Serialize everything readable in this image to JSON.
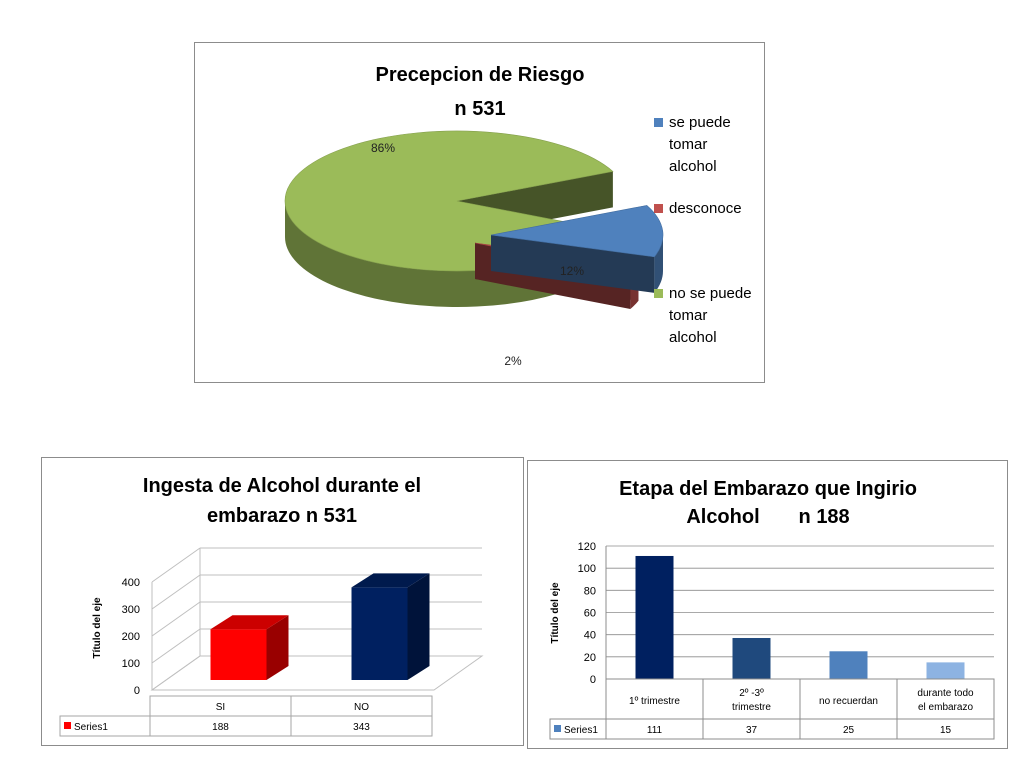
{
  "chart_data": [
    {
      "type": "pie",
      "title": "Precepcion de Riesgo",
      "subtitle": "n 531",
      "categories": [
        "se puede tomar alcohol",
        "desconoce",
        "no se puede tomar alcohol"
      ],
      "legend_lines": [
        [
          "se puede",
          "tomar",
          "alcohol"
        ],
        [
          "desconoce"
        ],
        [
          "no se puede",
          "tomar",
          "alcohol"
        ]
      ],
      "values": [
        12,
        2,
        86
      ],
      "labels": [
        "12%",
        "2%",
        "86%"
      ],
      "colors": [
        "#4f81bd",
        "#c0504d",
        "#9bbb59"
      ],
      "legend_position": "right"
    },
    {
      "type": "bar",
      "title_lines": [
        "Ingesta de Alcohol durante el",
        "embarazo n 531"
      ],
      "ylabel": "Título del eje",
      "categories": [
        "SI",
        "NO"
      ],
      "series": [
        {
          "name": "Series1",
          "values": [
            188,
            343
          ]
        }
      ],
      "bar_colors": [
        "#ff0000",
        "#002060"
      ],
      "ylim": [
        0,
        400
      ],
      "yticks": [
        0,
        100,
        200,
        300,
        400
      ],
      "grid": true,
      "data_table": true
    },
    {
      "type": "bar",
      "title_lines": [
        "Etapa del Embarazo que Ingirio",
        "Alcohol       n 188"
      ],
      "ylabel": "Título del eje",
      "categories": [
        "1º trimestre",
        "2º -3º trimestre",
        "no recuerdan",
        "durante todo el embarazo"
      ],
      "category_lines": [
        [
          "1º trimestre"
        ],
        [
          "2º -3º",
          "trimestre"
        ],
        [
          "no recuerdan"
        ],
        [
          "durante todo",
          "el embarazo"
        ]
      ],
      "series": [
        {
          "name": "Series1",
          "values": [
            111,
            37,
            25,
            15
          ]
        }
      ],
      "bar_colors": [
        "#002060",
        "#1f497d",
        "#4f81bd",
        "#8db3e2"
      ],
      "ylim": [
        0,
        120
      ],
      "yticks": [
        0,
        20,
        40,
        60,
        80,
        100,
        120
      ],
      "grid": true,
      "data_table": true
    }
  ]
}
